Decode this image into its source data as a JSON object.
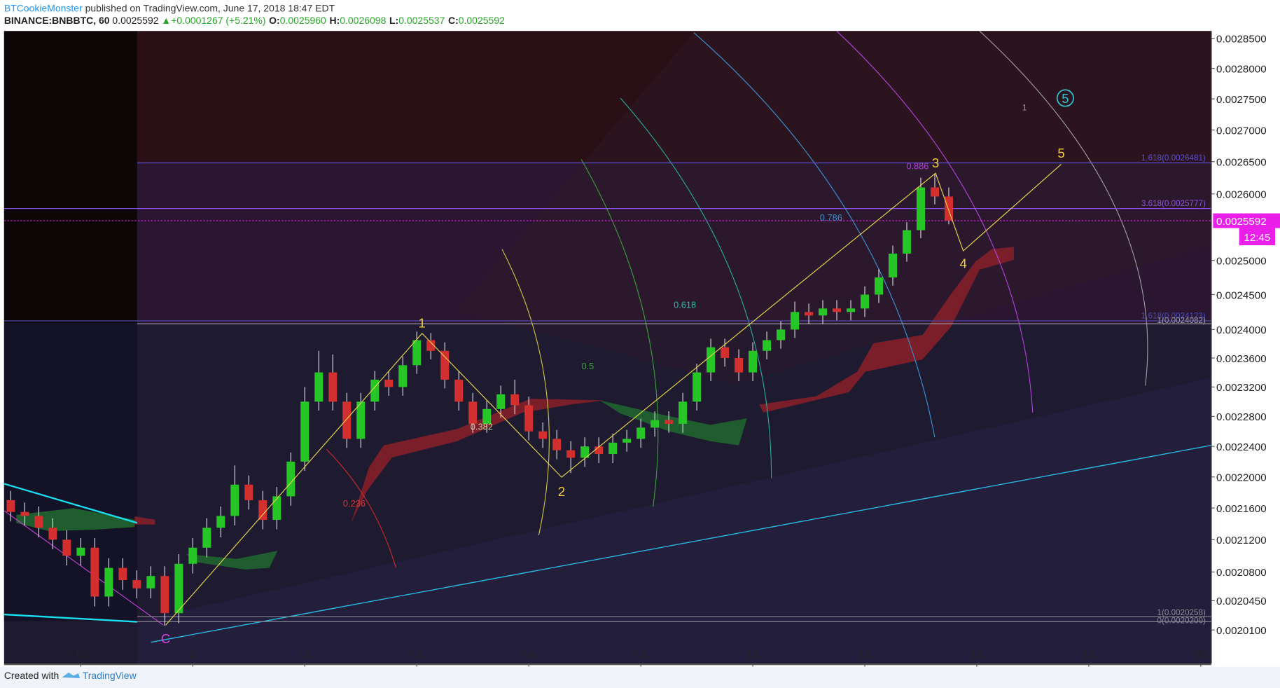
{
  "header": {
    "author": "BTCookieMonster",
    "published": "published on TradingView.com, June 17, 2018 18:47 EDT",
    "symbol": "BINANCE:BNBBTC, 60",
    "price": "0.0025592",
    "change": "▲+0.0001267 (+5.21%)",
    "ohlc": [
      {
        "label": "O:",
        "value": "0.0025960"
      },
      {
        "label": "H:",
        "value": "0.0026098"
      },
      {
        "label": "L:",
        "value": "0.0025537"
      },
      {
        "label": "C:",
        "value": "0.0025592"
      }
    ]
  },
  "footer": {
    "created": "Created with",
    "brand": "TradingView"
  },
  "chart_data": {
    "type": "candlestick",
    "log_scale": true,
    "up_color": "#26c626",
    "down_color": "#d32f2f",
    "x": [
      9.375,
      9.5,
      9.625,
      9.75,
      9.875,
      10,
      10.125,
      10.25,
      10.375,
      10.5,
      10.625,
      10.75,
      10.875,
      11,
      11.125,
      11.25,
      11.375,
      11.5,
      11.625,
      11.75,
      11.875,
      12,
      12.125,
      12.25,
      12.375,
      12.5,
      12.625,
      12.75,
      12.875,
      13,
      13.125,
      13.25,
      13.375,
      13.5,
      13.625,
      13.75,
      13.875,
      14,
      14.125,
      14.25,
      14.375,
      14.5,
      14.625,
      14.75,
      14.875,
      15,
      15.125,
      15.25,
      15.375,
      15.5,
      15.625,
      15.75,
      15.875,
      16,
      16.125,
      16.25,
      16.375,
      16.5,
      16.625,
      16.75,
      16.875,
      17,
      17.125,
      17.25,
      17.375,
      17.5,
      17.625,
      17.75
    ],
    "open": [
      0.00217,
      0.002155,
      0.00215,
      0.002135,
      0.00212,
      0.0021,
      0.00211,
      0.00205,
      0.002085,
      0.00207,
      0.00206,
      0.002075,
      0.00203,
      0.00209,
      0.00211,
      0.002135,
      0.00215,
      0.00219,
      0.00217,
      0.002145,
      0.002175,
      0.00222,
      0.0023,
      0.00234,
      0.0023,
      0.00225,
      0.0023,
      0.00233,
      0.00232,
      0.00235,
      0.002385,
      0.00237,
      0.00233,
      0.0023,
      0.00227,
      0.00229,
      0.00231,
      0.002295,
      0.00226,
      0.00225,
      0.002235,
      0.002225,
      0.00224,
      0.00223,
      0.002245,
      0.00225,
      0.002265,
      0.002275,
      0.00227,
      0.0023,
      0.00234,
      0.002375,
      0.00236,
      0.00234,
      0.00237,
      0.002385,
      0.0024,
      0.002425,
      0.00242,
      0.00243,
      0.002425,
      0.00243,
      0.00245,
      0.002475,
      0.00251,
      0.002545,
      0.00261,
      0.002596
    ],
    "high": [
      0.002182,
      0.002167,
      0.002162,
      0.002147,
      0.002132,
      0.002122,
      0.002122,
      0.002097,
      0.002097,
      0.002082,
      0.002087,
      0.002087,
      0.002102,
      0.002122,
      0.002147,
      0.002162,
      0.002215,
      0.002202,
      0.002182,
      0.002187,
      0.002232,
      0.00232,
      0.00237,
      0.002365,
      0.002312,
      0.002312,
      0.002342,
      0.002342,
      0.002362,
      0.002397,
      0.002395,
      0.002382,
      0.002342,
      0.002312,
      0.002302,
      0.002322,
      0.00233,
      0.002307,
      0.002272,
      0.002262,
      0.002247,
      0.002252,
      0.002252,
      0.002257,
      0.002262,
      0.002277,
      0.002287,
      0.002287,
      0.002312,
      0.002352,
      0.002387,
      0.002387,
      0.002372,
      0.002382,
      0.002397,
      0.002412,
      0.00244,
      0.002437,
      0.002442,
      0.002442,
      0.002442,
      0.002462,
      0.002487,
      0.002522,
      0.002557,
      0.002625,
      0.00263,
      0.0026098
    ],
    "low": [
      0.002143,
      0.002138,
      0.002123,
      0.002108,
      0.002088,
      0.002088,
      0.002038,
      0.002038,
      0.002058,
      0.002048,
      0.002048,
      0.002015,
      0.002018,
      0.002078,
      0.002098,
      0.002123,
      0.002138,
      0.002158,
      0.002133,
      0.002133,
      0.002163,
      0.002208,
      0.002288,
      0.002288,
      0.002238,
      0.002238,
      0.002288,
      0.002308,
      0.002308,
      0.002338,
      0.002358,
      0.002318,
      0.002288,
      0.002258,
      0.002258,
      0.002278,
      0.002283,
      0.002248,
      0.002238,
      0.002223,
      0.002205,
      0.002213,
      0.002218,
      0.002218,
      0.002233,
      0.002238,
      0.002253,
      0.002258,
      0.002258,
      0.002288,
      0.002328,
      0.002348,
      0.002328,
      0.002328,
      0.002358,
      0.002373,
      0.002388,
      0.002408,
      0.002408,
      0.002413,
      0.002413,
      0.002418,
      0.002438,
      0.002463,
      0.002498,
      0.002533,
      0.002584,
      0.0025537
    ],
    "close": [
      0.002155,
      0.00215,
      0.002135,
      0.00212,
      0.0021,
      0.00211,
      0.00205,
      0.002085,
      0.00207,
      0.00206,
      0.002075,
      0.00203,
      0.00209,
      0.00211,
      0.002135,
      0.00215,
      0.00219,
      0.00217,
      0.002145,
      0.002175,
      0.00222,
      0.0023,
      0.00234,
      0.0023,
      0.00225,
      0.0023,
      0.00233,
      0.00232,
      0.00235,
      0.002385,
      0.00237,
      0.00233,
      0.0023,
      0.00227,
      0.00229,
      0.00231,
      0.002295,
      0.00226,
      0.00225,
      0.002235,
      0.002225,
      0.00224,
      0.00223,
      0.002245,
      0.00225,
      0.002265,
      0.002275,
      0.00227,
      0.0023,
      0.00234,
      0.002375,
      0.00236,
      0.00234,
      0.00237,
      0.002385,
      0.0024,
      0.002425,
      0.00242,
      0.00243,
      0.002425,
      0.00243,
      0.00245,
      0.002475,
      0.00251,
      0.002545,
      0.00261,
      0.002596,
      0.0025592
    ],
    "xlim": [
      9.315,
      20.095
    ],
    "xticks": [
      10,
      11,
      12,
      13,
      14,
      15,
      16,
      17,
      18,
      19,
      20
    ],
    "ylim": [
      0.0019706,
      0.0028624
    ],
    "yticks": [
      {
        "value": 0.00285,
        "label": "0.0028500"
      },
      {
        "value": 0.0028,
        "label": "0.0028000"
      },
      {
        "value": 0.00275,
        "label": "0.0027500"
      },
      {
        "value": 0.0027,
        "label": "0.0027000"
      },
      {
        "value": 0.00265,
        "label": "0.0026500"
      },
      {
        "value": 0.0026,
        "label": "0.0026000"
      },
      {
        "value": 0.0025,
        "label": "0.0025000"
      },
      {
        "value": 0.00245,
        "label": "0.0024500"
      },
      {
        "value": 0.0024,
        "label": "0.0024000"
      },
      {
        "value": 0.00236,
        "label": "0.0023600"
      },
      {
        "value": 0.00232,
        "label": "0.0023200"
      },
      {
        "value": 0.00228,
        "label": "0.0022800"
      },
      {
        "value": 0.00224,
        "label": "0.0022400"
      },
      {
        "value": 0.0022,
        "label": "0.0022000"
      },
      {
        "value": 0.00216,
        "label": "0.0021600"
      },
      {
        "value": 0.00212,
        "label": "0.0021200"
      },
      {
        "value": 0.00208,
        "label": "0.0020800"
      },
      {
        "value": 0.002045,
        "label": "0.0020450"
      },
      {
        "value": 0.00201,
        "label": "0.0020100"
      }
    ],
    "current_price": 0.0025592,
    "countdown": "12:45",
    "levels": [
      {
        "label": "1.618(0.0026481)",
        "value": 0.0026481,
        "color": "#5b4fd0"
      },
      {
        "label": "3.618(0.0025777)",
        "value": 0.0025777,
        "color": "#8a4fd8"
      },
      {
        "label": "1.618(0.0024123)",
        "value": 0.0024123,
        "color": "#4a4ab0"
      },
      {
        "label": "1(0.0024082)",
        "value": 0.0024082,
        "color": "#9a9aa8"
      },
      {
        "label": "1(0.0020258)",
        "value": 0.0020258,
        "color": "#8a8a96"
      },
      {
        "label": "0(0.0020200)",
        "value": 0.00202,
        "color": "#8a8a96"
      }
    ],
    "annotations": [
      "1",
      "2",
      "3",
      "4",
      "5",
      "C",
      "5",
      "0.236",
      "0.382",
      "0.5",
      "0.618",
      "0.786",
      "0.886",
      "1"
    ]
  }
}
